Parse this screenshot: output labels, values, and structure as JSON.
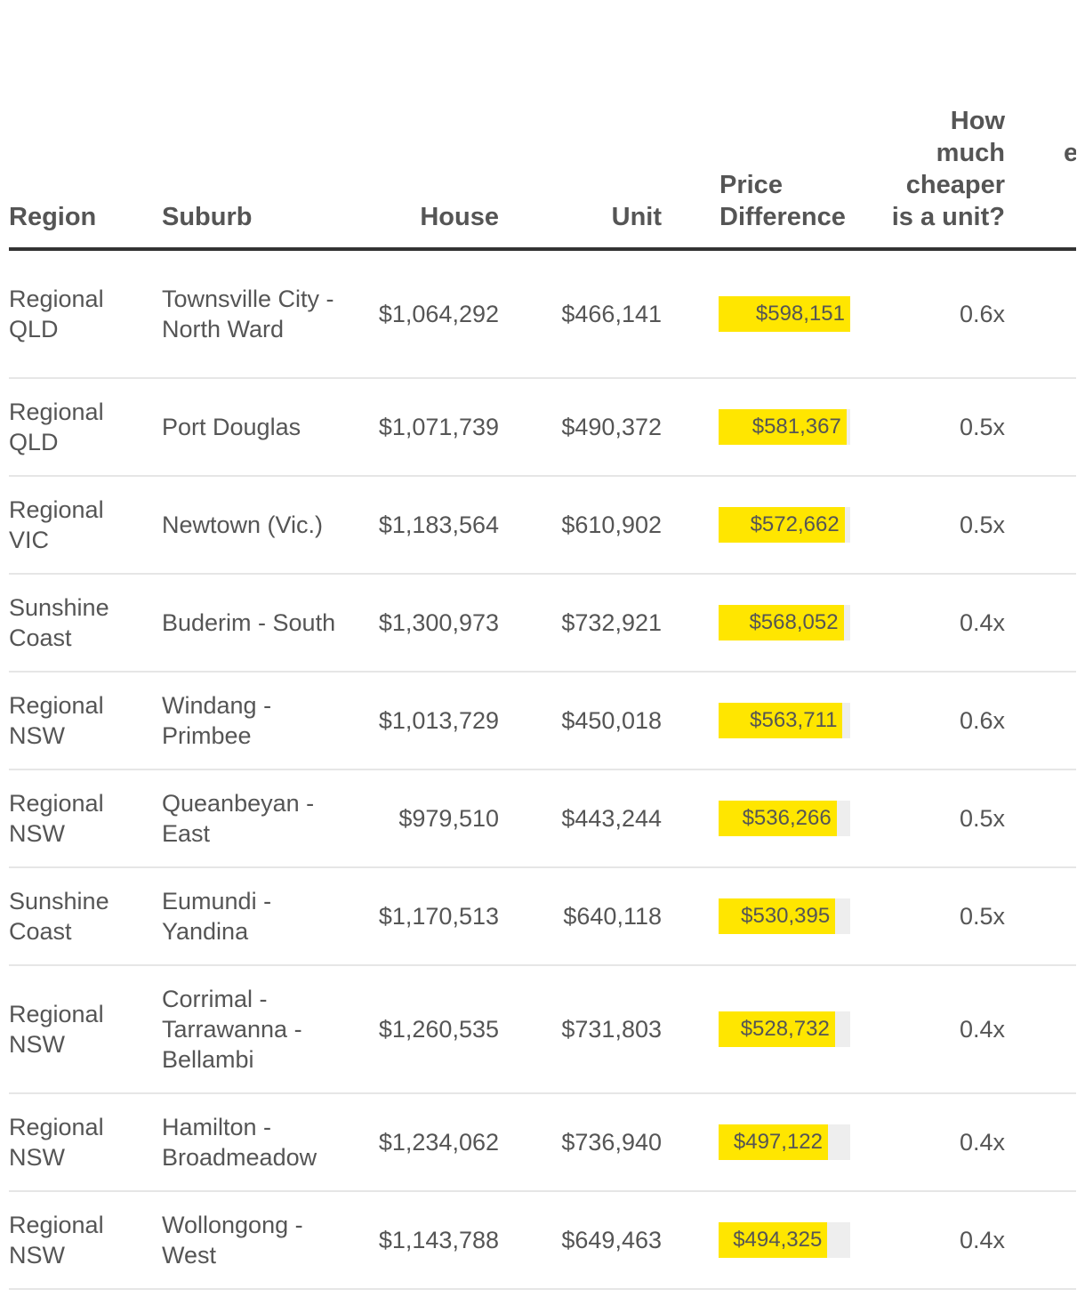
{
  "chart_data": {
    "type": "table",
    "columns": [
      "Region",
      "Suburb",
      "House",
      "Unit",
      "Price Difference",
      "How much cheaper is a unit?"
    ],
    "truncated_column_fragment": "e",
    "diff_max": 598151,
    "rows": [
      {
        "region": "Regional QLD",
        "suburb": "Townsville City - North Ward",
        "house": "$1,064,292",
        "unit": "$466,141",
        "diff": "$598,151",
        "diff_value": 598151,
        "cheaper": "0.6x"
      },
      {
        "region": "Regional QLD",
        "suburb": "Port Douglas",
        "house": "$1,071,739",
        "unit": "$490,372",
        "diff": "$581,367",
        "diff_value": 581367,
        "cheaper": "0.5x"
      },
      {
        "region": "Regional VIC",
        "suburb": "Newtown (Vic.)",
        "house": "$1,183,564",
        "unit": "$610,902",
        "diff": "$572,662",
        "diff_value": 572662,
        "cheaper": "0.5x"
      },
      {
        "region": "Sunshine Coast",
        "suburb": "Buderim - South",
        "house": "$1,300,973",
        "unit": "$732,921",
        "diff": "$568,052",
        "diff_value": 568052,
        "cheaper": "0.4x"
      },
      {
        "region": "Regional NSW",
        "suburb": "Windang - Primbee",
        "house": "$1,013,729",
        "unit": "$450,018",
        "diff": "$563,711",
        "diff_value": 563711,
        "cheaper": "0.6x"
      },
      {
        "region": "Regional NSW",
        "suburb": "Queanbeyan - East",
        "house": "$979,510",
        "unit": "$443,244",
        "diff": "$536,266",
        "diff_value": 536266,
        "cheaper": "0.5x"
      },
      {
        "region": "Sunshine Coast",
        "suburb": "Eumundi - Yandina",
        "house": "$1,170,513",
        "unit": "$640,118",
        "diff": "$530,395",
        "diff_value": 530395,
        "cheaper": "0.5x"
      },
      {
        "region": "Regional NSW",
        "suburb": "Corrimal - Tarrawanna - Bellambi",
        "house": "$1,260,535",
        "unit": "$731,803",
        "diff": "$528,732",
        "diff_value": 528732,
        "cheaper": "0.4x"
      },
      {
        "region": "Regional NSW",
        "suburb": "Hamilton - Broadmeadow",
        "house": "$1,234,062",
        "unit": "$736,940",
        "diff": "$497,122",
        "diff_value": 497122,
        "cheaper": "0.4x"
      },
      {
        "region": "Regional NSW",
        "suburb": "Wollongong - West",
        "house": "$1,143,788",
        "unit": "$649,463",
        "diff": "$494,325",
        "diff_value": 494325,
        "cheaper": "0.4x"
      }
    ]
  }
}
